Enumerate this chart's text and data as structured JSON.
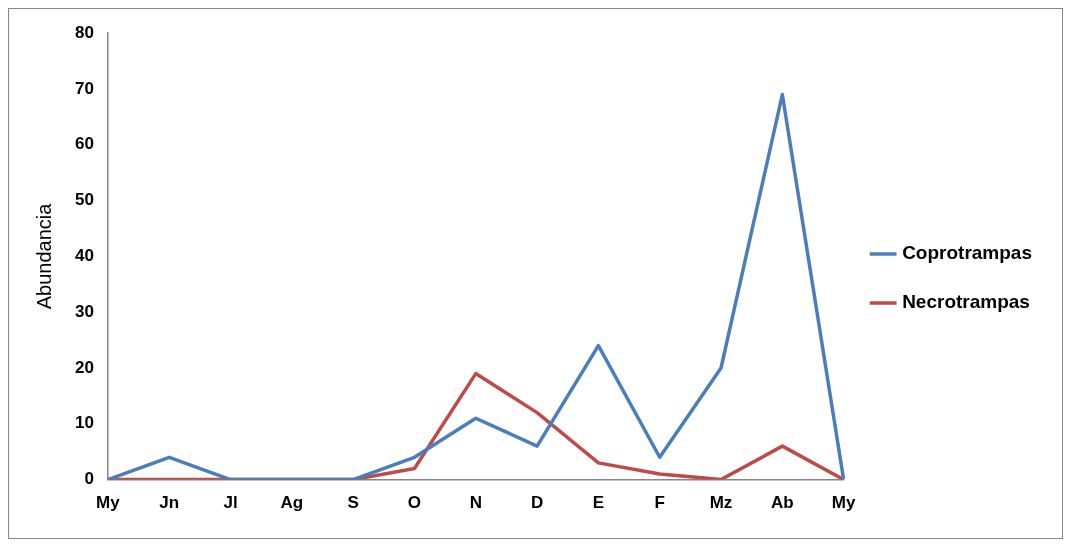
{
  "chart_data": {
    "type": "line",
    "ylabel": "Abundancia",
    "categories": [
      "My",
      "Jn",
      "Jl",
      "Ag",
      "S",
      "O",
      "N",
      "D",
      "E",
      "F",
      "Mz",
      "Ab",
      "My"
    ],
    "series": [
      {
        "name": "Coprotrampas",
        "color": "#4a7ebb",
        "values": [
          0,
          4,
          0,
          0,
          0,
          4,
          11,
          6,
          24,
          4,
          20,
          69,
          0
        ]
      },
      {
        "name": "Necrotrampas",
        "color": "#be4b48",
        "values": [
          0,
          0,
          0,
          0,
          0,
          2,
          19,
          12,
          3,
          1,
          0,
          6,
          0
        ]
      }
    ],
    "ylim": [
      0,
      80
    ],
    "yticks": [
      0,
      10,
      20,
      30,
      40,
      50,
      60,
      70,
      80
    ],
    "grid": false,
    "legend": "right",
    "marker": "none",
    "line_style": "solid"
  }
}
